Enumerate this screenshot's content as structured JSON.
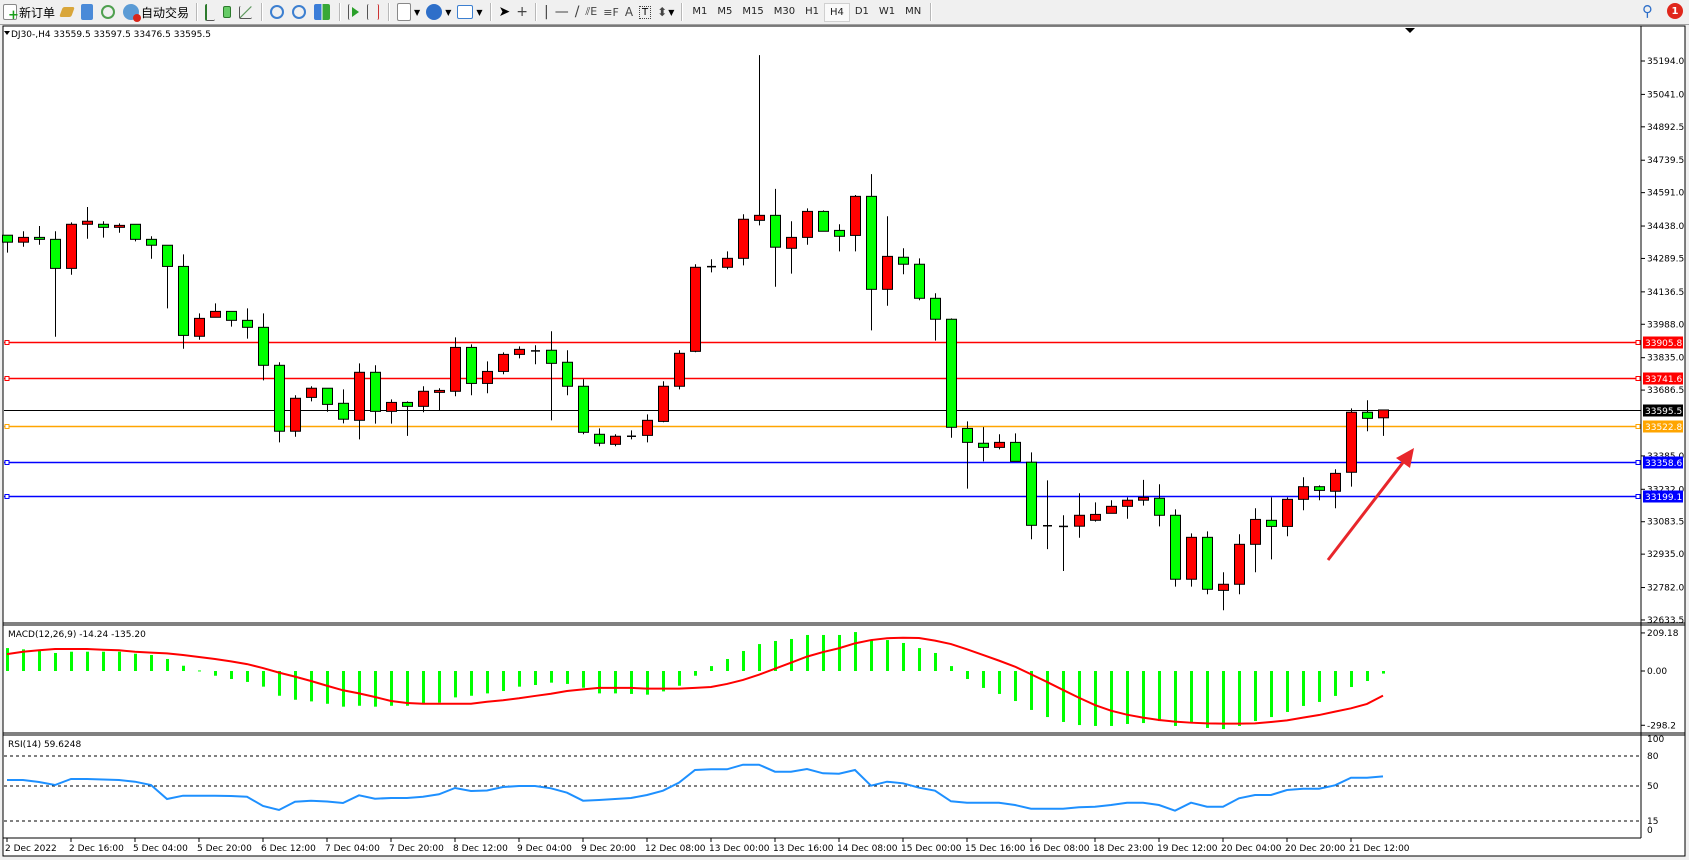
{
  "toolbar": {
    "new_order_label": "新订单",
    "auto_trading_label": "自动交易",
    "icons": [
      "new-order-icon",
      "gold-bars-icon",
      "market-watch-icon",
      "signals-icon",
      "auto-trading-icon",
      "bar-chart-icon",
      "candlestick-icon",
      "line-chart-icon",
      "zoom-in-icon",
      "zoom-out-icon",
      "tile-windows-icon",
      "auto-scroll-icon",
      "chart-shift-icon",
      "indicators-icon",
      "periods-icon",
      "templates-icon",
      "cursor-icon",
      "crosshair-icon",
      "vertical-line-icon",
      "horizontal-line-icon",
      "trendline-icon",
      "fibonacci-icon",
      "fibonacci-fan-icon",
      "text-icon",
      "text-label-icon",
      "arrows-icon",
      "search-icon",
      "notifications-icon"
    ],
    "text_tool_label": "A",
    "timeframes": [
      "M1",
      "M5",
      "M15",
      "M30",
      "H1",
      "H4",
      "D1",
      "W1",
      "MN"
    ],
    "active_timeframe": "H4",
    "notification_count": "1"
  },
  "chart": {
    "header": "DJ30-,H4  33559.5 33597.5 33476.5 33595.5",
    "colors": {
      "bull": "#ff0000",
      "bear": "#00ff00",
      "macd_hist": "#00ff00",
      "signal": "#ff0000",
      "rsi": "#1e90ff",
      "arrow": "#e8262b"
    },
    "price_axis": [
      "35194.0",
      "35041.0",
      "34892.5",
      "34739.5",
      "34591.0",
      "34438.0",
      "34289.5",
      "34136.5",
      "33988.0",
      "33835.0",
      "33686.5",
      "33385.0",
      "33232.0",
      "33083.5",
      "32935.0",
      "32782.0",
      "32633.5"
    ],
    "levels": [
      {
        "price": "33905.8",
        "color": "#ff0000"
      },
      {
        "price": "33741.6",
        "color": "#ff0000"
      },
      {
        "price": "33595.5",
        "color": "#000000",
        "current": true
      },
      {
        "price": "33522.8",
        "color": "#ffa500"
      },
      {
        "price": "33358.6",
        "color": "#0000ff"
      },
      {
        "price": "33199.1",
        "color": "#0000ff"
      }
    ],
    "time_axis": [
      "2 Dec 2022",
      "2 Dec 16:00",
      "5 Dec 04:00",
      "5 Dec 20:00",
      "6 Dec 12:00",
      "7 Dec 04:00",
      "7 Dec 20:00",
      "8 Dec 12:00",
      "9 Dec 04:00",
      "9 Dec 20:00",
      "12 Dec 08:00",
      "13 Dec 00:00",
      "13 Dec 16:00",
      "14 Dec 08:00",
      "15 Dec 00:00",
      "15 Dec 16:00",
      "16 Dec 08:00",
      "18 Dec 23:00",
      "19 Dec 12:00",
      "20 Dec 04:00",
      "20 Dec 20:00",
      "21 Dec 12:00"
    ]
  },
  "chart_data": [
    {
      "type": "candlestick",
      "symbol": "DJ30-",
      "timeframe": "H4",
      "ylim": [
        32633.5,
        35194.0
      ],
      "ohlc": [
        [
          34396,
          34396,
          34316,
          34364
        ],
        [
          34364,
          34414,
          34343,
          34386
        ],
        [
          34386,
          34438,
          34352,
          34377
        ],
        [
          34377,
          34414,
          33931,
          34244
        ],
        [
          34244,
          34455,
          34215,
          34446
        ],
        [
          34446,
          34525,
          34380,
          34460
        ],
        [
          34446,
          34460,
          34385,
          34432
        ],
        [
          34432,
          34450,
          34407,
          34441
        ],
        [
          34446,
          34446,
          34368,
          34377
        ],
        [
          34377,
          34391,
          34288,
          34350
        ],
        [
          34350,
          34350,
          34061,
          34253
        ],
        [
          34253,
          34308,
          33876,
          33937
        ],
        [
          33933,
          34038,
          33917,
          34015
        ],
        [
          34020,
          34084,
          34020,
          34047
        ],
        [
          34047,
          34047,
          33977,
          34006
        ],
        [
          34006,
          34061,
          33922,
          33974
        ],
        [
          33974,
          34038,
          33731,
          33800
        ],
        [
          33800,
          33814,
          33447,
          33498
        ],
        [
          33498,
          33663,
          33473,
          33649
        ],
        [
          33653,
          33704,
          33635,
          33695
        ],
        [
          33695,
          33695,
          33587,
          33621
        ],
        [
          33626,
          33690,
          33534,
          33553
        ],
        [
          33548,
          33809,
          33461,
          33768
        ],
        [
          33768,
          33800,
          33533,
          33589
        ],
        [
          33589,
          33644,
          33533,
          33630
        ],
        [
          33630,
          33635,
          33477,
          33612
        ],
        [
          33612,
          33704,
          33585,
          33681
        ],
        [
          33676,
          33695,
          33594,
          33685
        ],
        [
          33681,
          33928,
          33658,
          33882
        ],
        [
          33882,
          33896,
          33663,
          33717
        ],
        [
          33717,
          33818,
          33672,
          33772
        ],
        [
          33772,
          33859,
          33759,
          33850
        ],
        [
          33850,
          33887,
          33832,
          33873
        ],
        [
          33866,
          33892,
          33805,
          33866
        ],
        [
          33869,
          33956,
          33548,
          33809
        ],
        [
          33814,
          33869,
          33663,
          33704
        ],
        [
          33704,
          33736,
          33484,
          33493
        ],
        [
          33484,
          33511,
          33429,
          33443
        ],
        [
          33438,
          33484,
          33429,
          33475
        ],
        [
          33475,
          33502,
          33461,
          33475
        ],
        [
          33479,
          33575,
          33447,
          33548
        ],
        [
          33543,
          33727,
          33539,
          33704
        ],
        [
          33704,
          33869,
          33690,
          33855
        ],
        [
          33864,
          34263,
          33860,
          34249
        ],
        [
          34252,
          34286,
          34226,
          34252
        ],
        [
          34249,
          34322,
          34240,
          34290
        ],
        [
          34290,
          34492,
          34258,
          34469
        ],
        [
          34464,
          35221,
          34441,
          34487
        ],
        [
          34487,
          34608,
          34160,
          34341
        ],
        [
          34336,
          34460,
          34220,
          34386
        ],
        [
          34386,
          34519,
          34352,
          34505
        ],
        [
          34505,
          34510,
          34414,
          34414
        ],
        [
          34418,
          34446,
          34322,
          34391
        ],
        [
          34395,
          34580,
          34322,
          34574
        ],
        [
          34574,
          34676,
          33960,
          34148
        ],
        [
          34148,
          34483,
          34073,
          34299
        ],
        [
          34295,
          34336,
          34217,
          34263
        ],
        [
          34263,
          34290,
          34098,
          34107
        ],
        [
          34107,
          34130,
          33913,
          34011
        ],
        [
          34011,
          34015,
          33468,
          33516
        ],
        [
          33511,
          33543,
          33235,
          33447
        ],
        [
          33443,
          33517,
          33360,
          33424
        ],
        [
          33424,
          33484,
          33415,
          33447
        ],
        [
          33447,
          33488,
          33360,
          33360
        ],
        [
          33356,
          33401,
          33003,
          33067
        ],
        [
          33065,
          33273,
          32958,
          33065
        ],
        [
          33062,
          33113,
          32858,
          33062
        ],
        [
          33063,
          33214,
          33010,
          33113
        ],
        [
          33090,
          33172,
          33084,
          33117
        ],
        [
          33122,
          33182,
          33122,
          33154
        ],
        [
          33154,
          33195,
          33097,
          33182
        ],
        [
          33182,
          33275,
          33157,
          33195
        ],
        [
          33191,
          33255,
          33062,
          33113
        ],
        [
          33113,
          33140,
          32786,
          32820
        ],
        [
          32820,
          33030,
          32786,
          33012
        ],
        [
          33012,
          33039,
          32751,
          32774
        ],
        [
          32769,
          32852,
          32678,
          32797
        ],
        [
          32797,
          33026,
          32751,
          32980
        ],
        [
          32980,
          33145,
          32852,
          33094
        ],
        [
          33090,
          33195,
          32911,
          33062
        ],
        [
          33062,
          33195,
          33017,
          33186
        ],
        [
          33186,
          33287,
          33136,
          33244
        ],
        [
          33244,
          33250,
          33182,
          33227
        ],
        [
          33223,
          33324,
          33145,
          33305
        ],
        [
          33310,
          33603,
          33244,
          33585
        ],
        [
          33585,
          33640,
          33498,
          33557
        ],
        [
          33559.5,
          33597.5,
          33476.5,
          33595.5
        ]
      ]
    },
    {
      "type": "bar",
      "title": "MACD(12,26,9) -14.24 -135.20",
      "ylim": [
        -298.2,
        209.18
      ],
      "ticks": [
        "209.18",
        "0.00",
        "-298.2"
      ],
      "macd": [
        126,
        119,
        110,
        99,
        106,
        106,
        106,
        106,
        95,
        88,
        66,
        29,
        3,
        -26,
        -44,
        -60,
        -86,
        -136,
        -158,
        -167,
        -180,
        -196,
        -191,
        -196,
        -191,
        -191,
        -180,
        -174,
        -145,
        -136,
        -123,
        -110,
        -86,
        -77,
        -64,
        -71,
        -92,
        -123,
        -123,
        -126,
        -130,
        -112,
        -81,
        -26,
        27,
        66,
        110,
        148,
        165,
        176,
        198,
        198,
        198,
        214,
        170,
        170,
        154,
        126,
        99,
        27,
        -44,
        -93,
        -126,
        -165,
        -214,
        -253,
        -280,
        -297,
        -302,
        -302,
        -291,
        -286,
        -275,
        -302,
        -280,
        -313,
        -319,
        -302,
        -275,
        -253,
        -225,
        -192,
        -170,
        -137,
        -88,
        -55,
        -14.24
      ],
      "signal": [
        93,
        106,
        114,
        121,
        121,
        121,
        117,
        114,
        106,
        101,
        97,
        88,
        77,
        66,
        53,
        38,
        16,
        -9,
        -31,
        -55,
        -81,
        -106,
        -123,
        -143,
        -165,
        -176,
        -180,
        -180,
        -180,
        -180,
        -169,
        -161,
        -150,
        -137,
        -125,
        -110,
        -101,
        -93,
        -93,
        -93,
        -97,
        -97,
        -97,
        -93,
        -88,
        -71,
        -49,
        -20,
        13,
        46,
        79,
        104,
        125,
        152,
        170,
        180,
        183,
        181,
        167,
        148,
        119,
        88,
        57,
        24,
        -18,
        -60,
        -104,
        -147,
        -187,
        -218,
        -240,
        -256,
        -269,
        -278,
        -284,
        -288,
        -289,
        -289,
        -288,
        -280,
        -271,
        -256,
        -242,
        -223,
        -205,
        -181,
        -135.2
      ]
    },
    {
      "type": "line",
      "title": "RSI(14) 59.6248",
      "ylim": [
        0,
        100
      ],
      "ticks": [
        "100",
        "80",
        "50",
        "15",
        "0"
      ],
      "levels": [
        80,
        50,
        15
      ],
      "values": [
        56,
        56,
        54,
        51,
        57,
        57,
        56.5,
        56,
        54.3,
        51,
        37,
        40.3,
        40.3,
        40.3,
        40,
        39.3,
        30,
        26,
        34.3,
        35.3,
        34.5,
        33,
        40.7,
        37.3,
        38,
        38,
        39.3,
        41.7,
        48,
        45,
        45.5,
        49,
        50,
        50,
        47.7,
        43.3,
        35.3,
        36,
        37,
        38,
        41,
        45.3,
        53.3,
        66,
        66.7,
        66.7,
        71.3,
        71.3,
        64.3,
        64.3,
        67,
        62.7,
        62.3,
        66,
        50.3,
        54.3,
        52.7,
        48.3,
        45.3,
        34.7,
        33.3,
        33.3,
        33.3,
        31,
        27.3,
        27.3,
        27.3,
        28.7,
        29.3,
        31,
        33.3,
        33.3,
        31,
        25.3,
        33.3,
        29.3,
        29.3,
        37.7,
        41,
        41,
        46,
        47.3,
        47.3,
        50.7,
        58.3,
        58.3,
        59.6248
      ]
    }
  ]
}
